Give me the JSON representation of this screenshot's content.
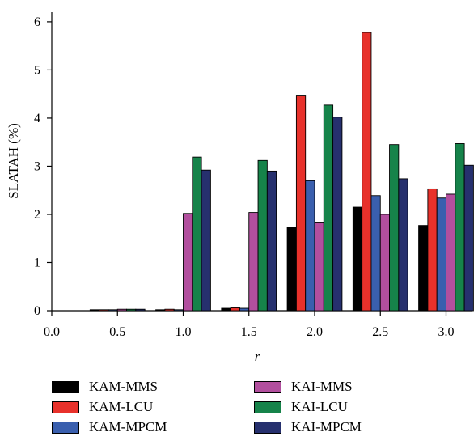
{
  "chart_data": {
    "type": "bar",
    "title": "",
    "xlabel": "r",
    "ylabel": "SLATAH (%)",
    "x_ticks": [
      "0.0",
      "0.5",
      "1.0",
      "1.5",
      "2.0",
      "2.5",
      "3.0"
    ],
    "y_ticks": [
      "0",
      "1",
      "2",
      "3",
      "4",
      "5",
      "6"
    ],
    "xlim": [
      0.0,
      3.2
    ],
    "ylim": [
      0,
      6.2
    ],
    "categories": [
      "0.5",
      "1.0",
      "1.5",
      "2.0",
      "2.5",
      "3.0"
    ],
    "category_x": [
      0.5,
      1.0,
      1.5,
      2.0,
      2.5,
      3.0
    ],
    "series": [
      {
        "name": "KAM-MMS",
        "color": "#000000",
        "values": [
          0.02,
          0.02,
          0.05,
          1.73,
          2.15,
          1.77
        ]
      },
      {
        "name": "KAM-LCU",
        "color": "#e8312b",
        "values": [
          0.02,
          0.03,
          0.06,
          4.46,
          5.78,
          2.53
        ]
      },
      {
        "name": "KAM-MPCM",
        "color": "#3a5fae",
        "values": [
          0.02,
          0.02,
          0.05,
          2.7,
          2.39,
          2.34
        ]
      },
      {
        "name": "KAI-MMS",
        "color": "#b24f9e",
        "values": [
          0.03,
          2.02,
          2.04,
          1.84,
          2.0,
          2.42
        ]
      },
      {
        "name": "KAI-LCU",
        "color": "#16834a",
        "values": [
          0.03,
          3.19,
          3.12,
          4.27,
          3.45,
          3.47
        ]
      },
      {
        "name": "KAI-MPCM",
        "color": "#26306e",
        "values": [
          0.03,
          2.92,
          2.9,
          4.02,
          2.74,
          3.02
        ]
      }
    ],
    "legend_position": "bottom",
    "grid": false
  }
}
